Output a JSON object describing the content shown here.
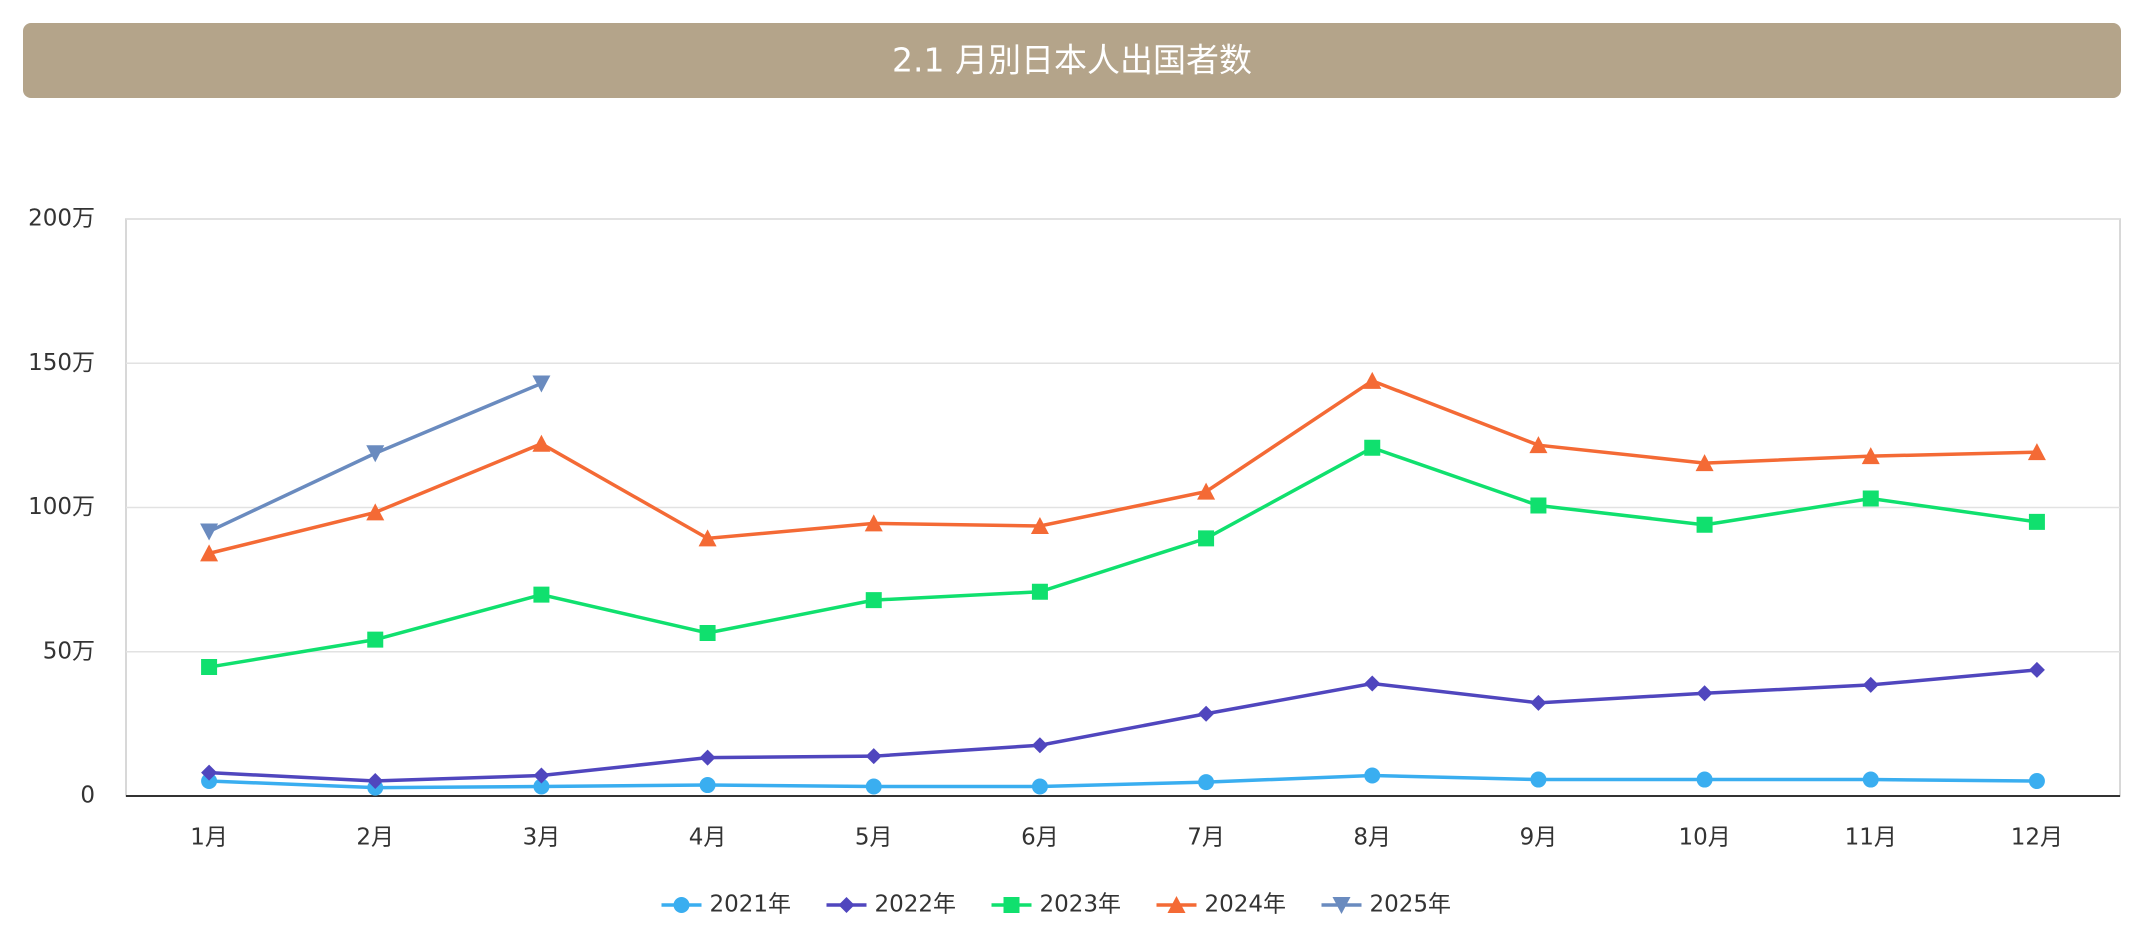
{
  "chart_data": {
    "type": "line",
    "title": "2.1 月別日本人出国者数",
    "categories": [
      "1月",
      "2月",
      "3月",
      "4月",
      "5月",
      "6月",
      "7月",
      "8月",
      "9月",
      "10月",
      "11月",
      "12月"
    ],
    "series": [
      {
        "name": "2021年",
        "color": "#3aaef0",
        "marker": "circle",
        "values": [
          5.2,
          2.9,
          3.3,
          3.8,
          3.3,
          3.3,
          4.8,
          7.1,
          5.7,
          5.7,
          5.7,
          5.2
        ]
      },
      {
        "name": "2022年",
        "color": "#5046be",
        "marker": "diamond",
        "values": [
          8.1,
          5.2,
          7.1,
          13.3,
          13.8,
          17.6,
          28.5,
          39,
          32.3,
          35.6,
          38.5,
          43.7
        ]
      },
      {
        "name": "2023年",
        "color": "#10e06e",
        "marker": "square",
        "values": [
          44.7,
          54.2,
          69.8,
          56.5,
          67.9,
          70.8,
          89.3,
          120.7,
          100.7,
          94,
          103.1,
          95
        ]
      },
      {
        "name": "2024年",
        "color": "#f46a35",
        "marker": "triangle-up",
        "values": [
          84.1,
          98.3,
          122.1,
          89.3,
          94.5,
          93.6,
          105.5,
          143.9,
          121.6,
          115.4,
          117.8,
          119.2
        ]
      },
      {
        "name": "2025年",
        "color": "#6a8bbf",
        "marker": "triangle-down",
        "values": [
          91.7,
          118.8,
          143,
          null,
          null,
          null,
          null,
          null,
          null,
          null,
          null,
          null
        ]
      }
    ],
    "ylim": [
      0,
      200
    ],
    "yticks": [
      0,
      {
        "value": 50,
        "label": "50万"
      },
      {
        "value": 100,
        "label": "100万"
      },
      {
        "value": 150,
        "label": "150万"
      },
      {
        "value": 200,
        "label": "200万"
      }
    ],
    "grid": true,
    "legend": "bottom"
  }
}
